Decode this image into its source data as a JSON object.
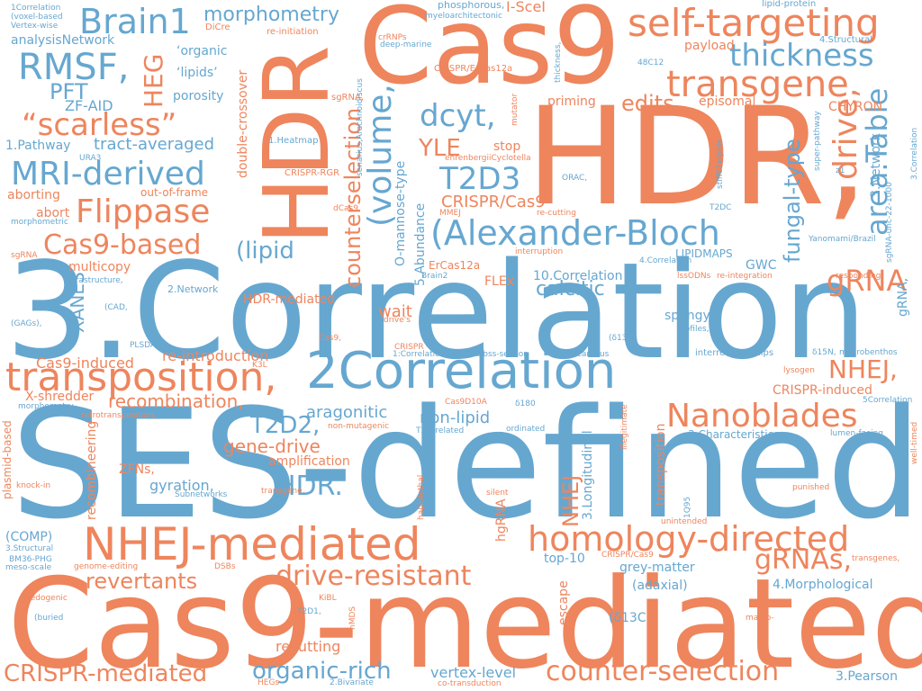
{
  "palette": {
    "orange": "#ee855d",
    "blue": "#66a7d0",
    "background": "#ffffff"
  },
  "words": {
    "w001": "SES-defined",
    "w002": "3.Correlation",
    "w003": "Cas9-mediated",
    "w004": "HDR,",
    "w005": "Cas9",
    "w006": "HDR",
    "w007": "transposition,",
    "w008": "2Correlation",
    "w009": "NHEJ-mediated",
    "w010": "homology-directed",
    "w011": "(Alexander-Bloch",
    "w012": "self-targeting",
    "w013": "transgene",
    "w014": "Nanoblades",
    "w015": "counter-selection",
    "w016": "drive-resistant",
    "w017": "Brain1",
    "w018": "RMSF,",
    "w019": "“scarless”",
    "w020": "MRI-derived",
    "w021": "Flippase",
    "w022": "Cas9-based",
    "w023": "thickness",
    "w024": "dcyt,",
    "w025": "T2D3",
    "w026": "(volume,",
    "w027": "drive,",
    "w028": "area.Table",
    "w029": "gRNA",
    "w030": "gRNAs,",
    "w031": "HDR.",
    "w032": "revertants",
    "w033": "CRISPR-mediated",
    "w034": "organic-rich",
    "w035": "T2D2,",
    "w036": "NHEJ,",
    "w037": "morphometry",
    "w038": "PFT",
    "w039": "YLE",
    "w040": "edits",
    "w041": "counterselection",
    "w042": "fungal-type",
    "w043": "HEG",
    "w044": "(lipid",
    "w045": "calcitic",
    "w046": "CRISPR/Cas9",
    "w047": "gene-drive",
    "w048": "recombination,",
    "w049": "aragonitic",
    "w050": "non-lipid",
    "w051": "wait",
    "w052": "spongy",
    "w053": "XANES",
    "w054": "ZF-AID",
    "w055": "Cas9-induced",
    "w056": "re-introduction",
    "w057": "CRISPR-induced",
    "w058": "NHEJ",
    "w059": "grey-matter",
    "w060": "recutting",
    "w061": "vertex-level",
    "w062": "(adaxial)",
    "w063": "4.Morphological",
    "w064": "3.Pearson",
    "w065": "1.Pathway",
    "w066": "tract-averaged",
    "w067": "analysisNetwork",
    "w068": "out-of-frame",
    "w069": "aborting",
    "w070": "abort",
    "w071": "multicopy",
    "w072": "2.Network",
    "w073": "porosity",
    "w074": "‘organic",
    "w075": "‘lipids’",
    "w076": "I-SceI",
    "w077": "phosphorous,",
    "w078": "payload",
    "w079": "priming",
    "w080": "episomal",
    "w081": "CHYRON",
    "w082": "stop",
    "w083": "ErCas12a",
    "w084": "FLEx",
    "w085": "10.Correlation",
    "w086": "GWC",
    "w087": "LIPIDMAPS",
    "w088": "HDR-mediated",
    "w089": "amplification",
    "w090": "gyration,",
    "w091": "ZFNs,",
    "w092": "X-shredder",
    "w093": "recombineering",
    "w094": "plasmid-based",
    "w095": "(COMP)",
    "w096": "3:Characteristics",
    "w097": "interrelationships",
    "w098": "3.Longitudinal",
    "w099": "transposition",
    "w100": "hgRNA",
    "w101": "escape",
    "w102": "top-10",
    "w103": "double-crossover",
    "w104": "5.Abundance",
    "w105": "O-mannose-type",
    "w106": "3.Network",
    "w107": "gRNA,",
    "w108": "1Correlation",
    "w109": "(voxel-based",
    "w110": "Vertex-wise",
    "w111": "DiCre",
    "w112": "re-initiation",
    "w113": "myeloarchitectonic",
    "w114": "crRNPs",
    "w115": "deep-marine",
    "w116": "4.Structural",
    "w117": "lipid-protein",
    "w118": "48C12",
    "w119": "1.Heatmap",
    "w120": "sgRNA,",
    "w121": "CRISPR/ErCas12a",
    "w122": "ehrenbergiiCyclotella",
    "w123": "CRISPR-RGR",
    "w124": "ORAC,",
    "w125": "MMEJ",
    "w126": "re-cutting",
    "w127": "T2DC",
    "w128": "URA3",
    "w129": "morphometric",
    "w130": "sgRNA",
    "w131": "dCas9,",
    "w132": "Brain2",
    "w133": "interruption",
    "w134": "4.Correlation",
    "w135": "lssODNs",
    "w136": "re-integration",
    "w137": "responding,",
    "w138": "Yanomami/Brazil",
    "w139": "ultrastructure,",
    "w140": "(CAD,",
    "w141": "(GAGs),",
    "w142": "drive's",
    "w143": "osteon",
    "w144": "Profiles,",
    "w145": "(δ13C,",
    "w146": "δ15N,",
    "w147": "macrobenthos",
    "w148": "1:Correlation",
    "w149": "cross-section",
    "w150": "calcareous",
    "w151": "lysogen",
    "w152": "5Correlation",
    "w153": "Cas9D10A",
    "w154": "δ180",
    "w155": "PLSDA",
    "w156": "K3L",
    "w157": "morphometry,",
    "w158": "retrotransposition,",
    "w159": "non-mutagenic",
    "w160": "T2D-related",
    "w161": "ordinated",
    "w162": "illegitimate",
    "w163": "lumen-facing",
    "w164": "well-timed",
    "w165": "knock-in",
    "w166": "Subnetworks",
    "w167": "transgene,",
    "w168": "silent",
    "w169": "haplolethal",
    "w170": "punished",
    "w171": "1Q95",
    "w172": "unintended",
    "w173": "3.Structural",
    "w174": "BM36-PHG",
    "w175": "meso-scale",
    "w176": "genome-editing",
    "w177": "DSBs",
    "w178": "CRISPR/Cas9",
    "w179": "transgenes,",
    "w180": "pedogenic",
    "w181": "KiBL",
    "w182": "T2D1,",
    "w183": "nMDS",
    "w184": "macro-",
    "w185": "(buried",
    "w186": "(δ13C",
    "w187": "HEGs",
    "w188": "2.Bivariate",
    "w189": "co-transduction",
    "w190": "Cas9,",
    "w191": "CRISPR",
    "w192": "sgRNA-unc-22-1000",
    "w193": "3.Correlation",
    "w194": "stiff01eipids",
    "w195": "super-pathway",
    "w196": "z1",
    "w197": "senarius,Arachnoidiscus",
    "w198": "mutator",
    "w199": "thickness,"
  }
}
